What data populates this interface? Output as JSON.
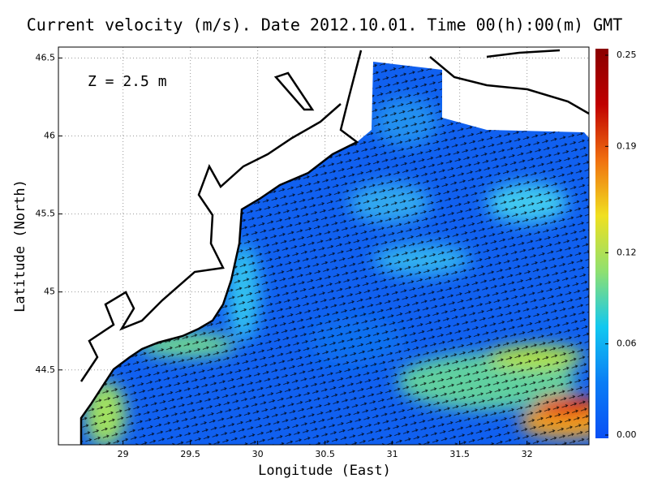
{
  "chart_data": {
    "type": "map",
    "title": "Current velocity (m/s). Date 2012.10.01. Time 00(h):00(m) GMT",
    "annotation": "Z = 2.5 m",
    "x_label": "Longitude (East)",
    "y_label": "Latitude (North)",
    "xlim": [
      28.52,
      32.46
    ],
    "ylim": [
      44.02,
      46.57
    ],
    "xticks": [
      29,
      29.5,
      30,
      30.5,
      31,
      31.5,
      32
    ],
    "yticks": [
      44.5,
      45,
      45.5,
      46,
      46.5
    ],
    "grid": true,
    "colorbar": {
      "clim": [
        0,
        0.25
      ],
      "ticks": [
        {
          "value": 0,
          "label": "0.00"
        },
        0.06,
        0.12,
        0.19,
        0.25
      ],
      "colors": [
        "#0a4ff5",
        "#0a7df5",
        "#12c8f0",
        "#8fe070",
        "#f0e020",
        "#f07010",
        "#c00000",
        "#8a0000"
      ]
    }
  }
}
